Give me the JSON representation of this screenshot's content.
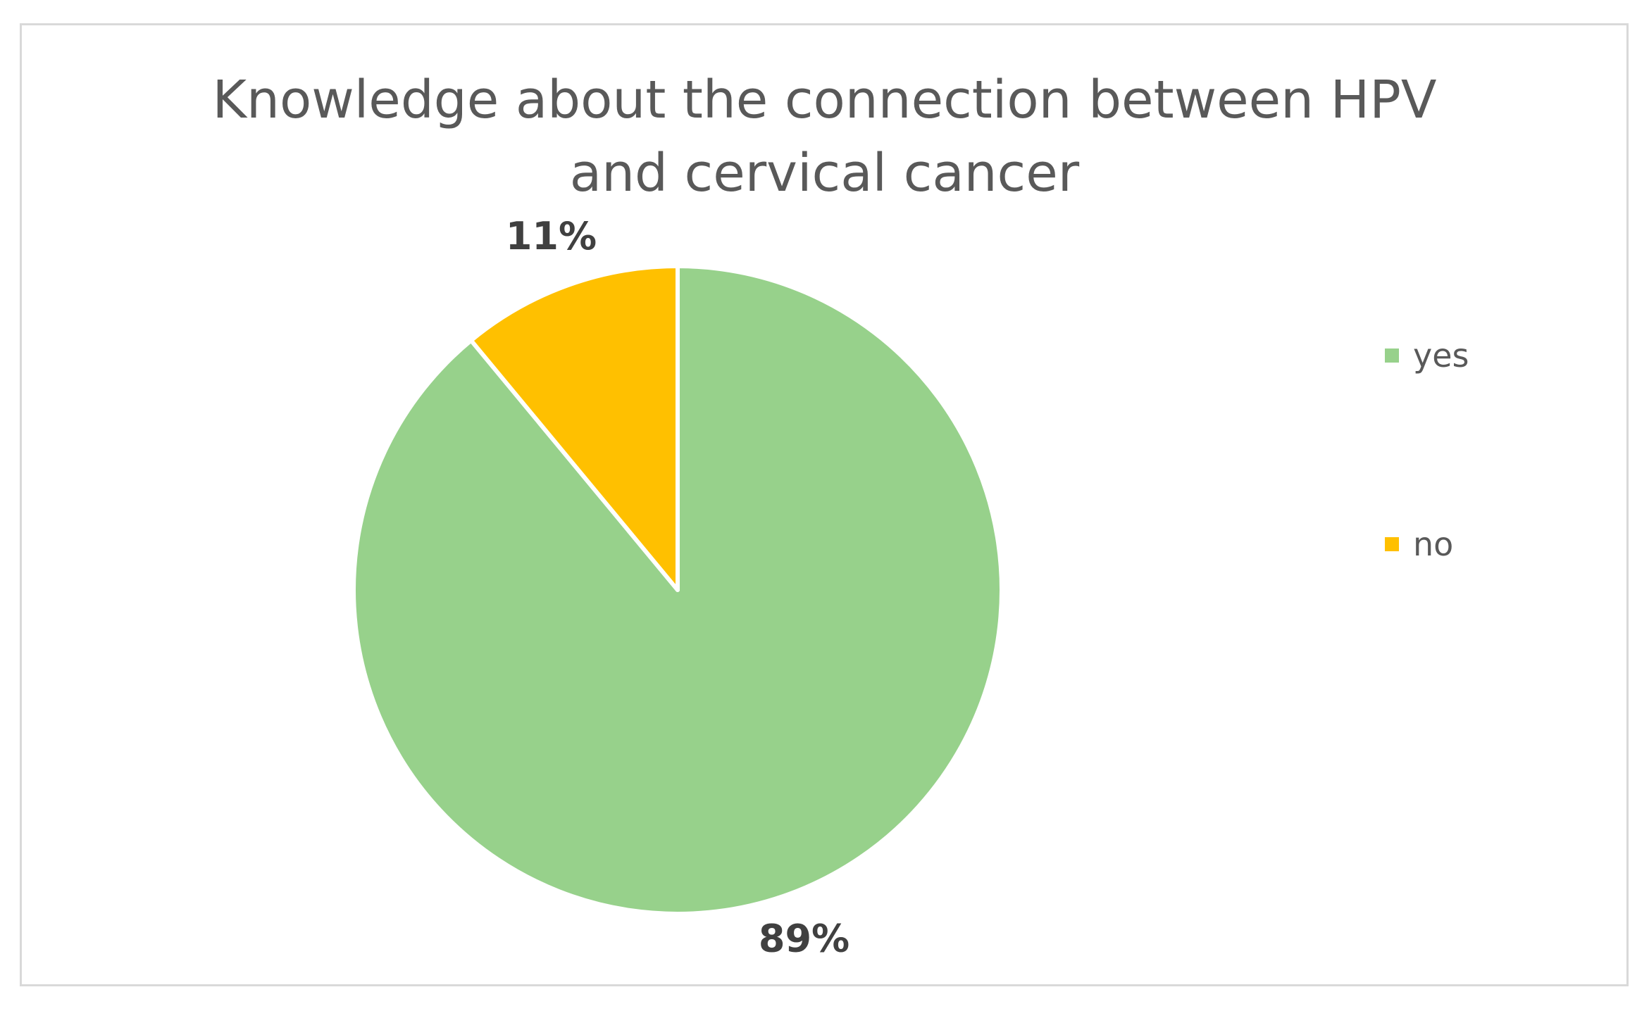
{
  "chart_data": {
    "type": "pie",
    "title_lines": [
      "Knowledge about the connection between HPV",
      "and cervical cancer"
    ],
    "categories": [
      "yes",
      "no"
    ],
    "values": [
      89,
      11
    ],
    "data_labels": [
      "89%",
      "11%"
    ],
    "colors": [
      "#97d18b",
      "#ffc000"
    ],
    "legend_position": "right"
  }
}
